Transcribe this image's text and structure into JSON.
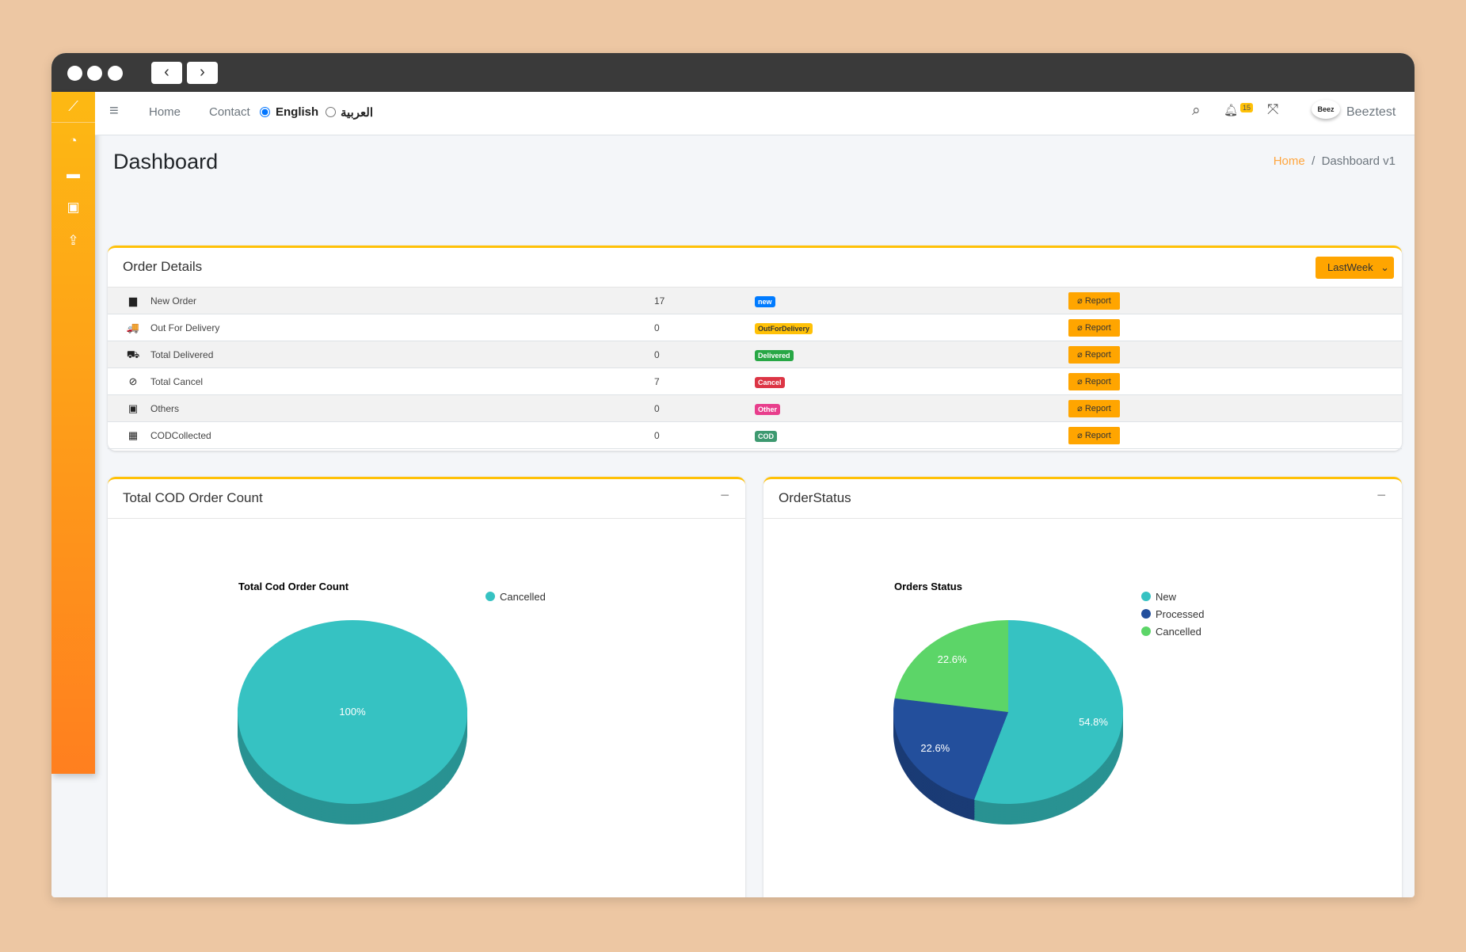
{
  "nav": {
    "home": "Home",
    "contact": "Contact",
    "lang_en": "English",
    "lang_ar": "العربية",
    "notif_count": "15",
    "user": "Beeztest",
    "avatar_text": "Beez"
  },
  "page": {
    "title": "Dashboard",
    "crumb_home": "Home",
    "crumb_sep": "/",
    "crumb_current": "Dashboard v1"
  },
  "orders": {
    "title": "Order Details",
    "period": "LastWeek",
    "report_label": "Report",
    "rows": [
      {
        "label": "New Order",
        "count": "17",
        "badge": "new",
        "color": "#007bff",
        "icon": "▆"
      },
      {
        "label": "Out For Delivery",
        "count": "0",
        "badge": "OutForDelivery",
        "color": "#ffc107",
        "icon": "🚚"
      },
      {
        "label": "Total Delivered",
        "count": "0",
        "badge": "Delivered",
        "color": "#28a745",
        "icon": "⛟"
      },
      {
        "label": "Total Cancel",
        "count": "7",
        "badge": "Cancel",
        "color": "#dc3545",
        "icon": "⊘"
      },
      {
        "label": "Others",
        "count": "0",
        "badge": "Other",
        "color": "#e83e8c",
        "icon": "▣"
      },
      {
        "label": "CODCollected",
        "count": "0",
        "badge": "COD",
        "color": "#3d9970",
        "icon": "▦"
      }
    ]
  },
  "cod_card": {
    "title": "Total COD Order Count"
  },
  "status_card": {
    "title": "OrderStatus"
  },
  "chart_data": [
    {
      "type": "pie",
      "title": "Total Cod Order Count",
      "labels": [
        "Cancelled"
      ],
      "values": [
        100
      ],
      "data_labels": [
        "100%"
      ],
      "colors": [
        "#36c2c2"
      ],
      "legend": "top-right"
    },
    {
      "type": "pie",
      "title": "Orders Status",
      "labels": [
        "New",
        "Processed",
        "Cancelled"
      ],
      "values": [
        54.8,
        22.6,
        22.6
      ],
      "data_labels": [
        "54.8%",
        "22.6%",
        "22.6%"
      ],
      "colors": [
        "#36c2c2",
        "#234f9c",
        "#5cd568"
      ],
      "legend": "top-right"
    }
  ]
}
